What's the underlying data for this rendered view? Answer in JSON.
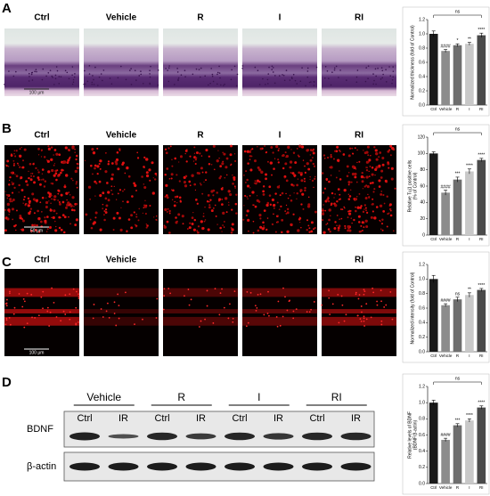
{
  "panels": [
    {
      "letter": "A",
      "image_labels": [
        "Ctrl",
        "Vehicle",
        "R",
        "I",
        "RI"
      ],
      "scale_bar": "100 μm",
      "chart": {
        "type": "bar",
        "y_label": [
          "Normalized thickness (fold of Control)"
        ],
        "categories": [
          "Ctrl",
          "Vehicle",
          "R",
          "I",
          "RI"
        ],
        "values": [
          1.0,
          0.76,
          0.84,
          0.86,
          0.98
        ],
        "errors": [
          0.04,
          0.02,
          0.02,
          0.02,
          0.03
        ],
        "colors": [
          "#1a1a1a",
          "#8c8c8c",
          "#6e6e6e",
          "#c8c8c8",
          "#4a4a4a"
        ],
        "annotations": [
          "",
          "####",
          "*",
          "**",
          "****"
        ],
        "bracket_label": "ns",
        "ylim": [
          0,
          1.2
        ],
        "yticks": [
          {
            "value": 0,
            "label": "0.0"
          },
          {
            "value": 0.2,
            "label": "0.2"
          },
          {
            "value": 0.4,
            "label": "0.4"
          },
          {
            "value": 0.6,
            "label": "0.6"
          },
          {
            "value": 0.8,
            "label": "0.8"
          },
          {
            "value": 1,
            "label": "1.0"
          },
          {
            "value": 1.2,
            "label": "1.2"
          }
        ]
      }
    },
    {
      "letter": "B",
      "image_labels": [
        "Ctrl",
        "Vehicle",
        "R",
        "I",
        "RI"
      ],
      "scale_bar": "50 μm",
      "chart": {
        "type": "bar",
        "y_label": [
          "Relative Tuj1 positive cells",
          "(% of Control)"
        ],
        "categories": [
          "Ctrl",
          "Vehicle",
          "R",
          "I",
          "RI"
        ],
        "values": [
          100,
          52,
          68,
          78,
          92
        ],
        "errors": [
          2,
          3,
          3,
          3,
          2
        ],
        "colors": [
          "#1a1a1a",
          "#8c8c8c",
          "#6e6e6e",
          "#c8c8c8",
          "#4a4a4a"
        ],
        "annotations": [
          "",
          "####",
          "***",
          "****",
          "****"
        ],
        "bracket_label": "ns",
        "ylim": [
          0,
          120
        ],
        "yticks": [
          0,
          20,
          40,
          60,
          80,
          100,
          120
        ]
      }
    },
    {
      "letter": "C",
      "image_labels": [
        "Ctrl",
        "Vehicle",
        "R",
        "I",
        "RI"
      ],
      "scale_bar": "100 μm",
      "chart": {
        "type": "bar",
        "y_label": [
          "Normalized intensity (fold of Control)"
        ],
        "categories": [
          "Ctrl",
          "Vehicle",
          "R",
          "I",
          "RI"
        ],
        "values": [
          1.0,
          0.64,
          0.72,
          0.78,
          0.85
        ],
        "errors": [
          0.05,
          0.02,
          0.03,
          0.03,
          0.02
        ],
        "colors": [
          "#1a1a1a",
          "#8c8c8c",
          "#6e6e6e",
          "#c8c8c8",
          "#4a4a4a"
        ],
        "annotations": [
          "",
          "####",
          "ns",
          "**",
          "****"
        ],
        "ylim": [
          0,
          1.2
        ],
        "yticks": [
          {
            "value": 0,
            "label": "0.0"
          },
          {
            "value": 0.2,
            "label": "0.2"
          },
          {
            "value": 0.4,
            "label": "0.4"
          },
          {
            "value": 0.6,
            "label": "0.6"
          },
          {
            "value": 0.8,
            "label": "0.8"
          },
          {
            "value": 1,
            "label": "1.0"
          },
          {
            "value": 1.2,
            "label": "1.2"
          }
        ]
      }
    },
    {
      "letter": "D",
      "chart": {
        "type": "bar",
        "y_label": [
          "Relative levels of BDNF",
          "(BDNF/β-actin)"
        ],
        "categories": [
          "Ctrl",
          "Vehicle",
          "R",
          "I",
          "RI"
        ],
        "values": [
          1.0,
          0.54,
          0.72,
          0.78,
          0.94
        ],
        "errors": [
          0.03,
          0.02,
          0.02,
          0.02,
          0.02
        ],
        "colors": [
          "#1a1a1a",
          "#8c8c8c",
          "#6e6e6e",
          "#c8c8c8",
          "#4a4a4a"
        ],
        "annotations": [
          "",
          "####",
          "***",
          "****",
          "****"
        ],
        "bracket_label": "ns",
        "ylim": [
          0,
          1.2
        ],
        "yticks": [
          {
            "value": 0,
            "label": "0.0"
          },
          {
            "value": 0.2,
            "label": "0.2"
          },
          {
            "value": 0.4,
            "label": "0.4"
          },
          {
            "value": 0.6,
            "label": "0.6"
          },
          {
            "value": 0.8,
            "label": "0.8"
          },
          {
            "value": 1,
            "label": "1.0"
          },
          {
            "value": 1.2,
            "label": "1.2"
          }
        ]
      }
    }
  ],
  "blot": {
    "groups": [
      "Vehicle",
      "R",
      "I",
      "RI"
    ],
    "lanes": [
      "Ctrl",
      "IR",
      "Ctrl",
      "IR",
      "Ctrl",
      "IR",
      "Ctrl",
      "IR"
    ],
    "rows": [
      "BDNF",
      "β-actin"
    ]
  }
}
